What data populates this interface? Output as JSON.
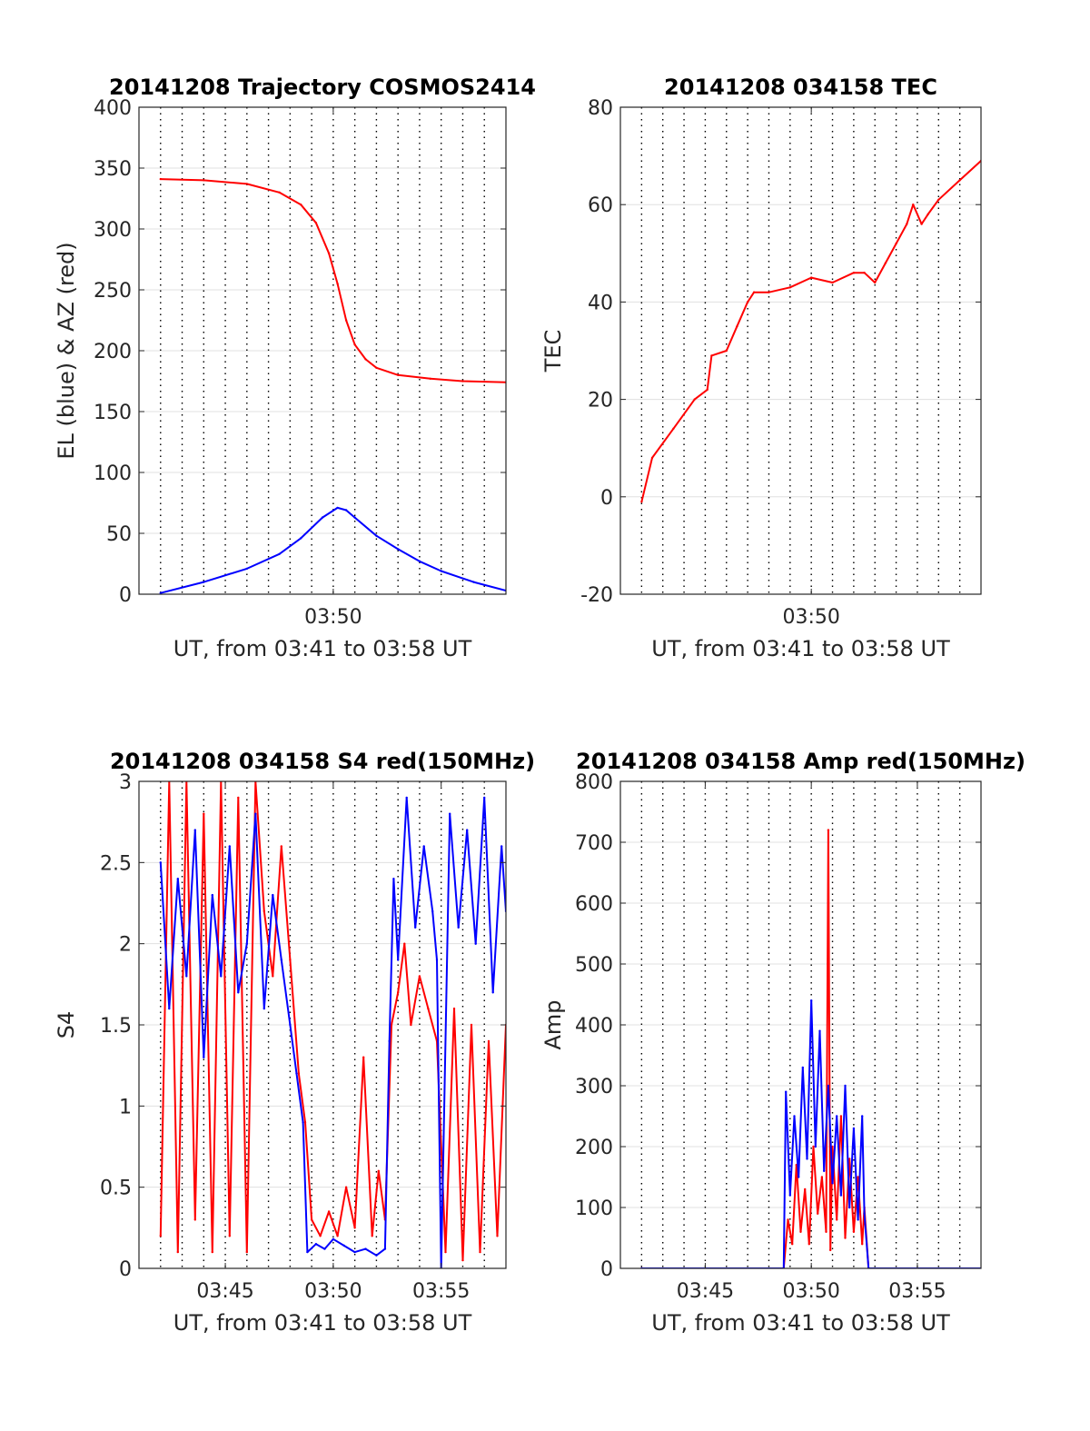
{
  "chart_data": [
    {
      "type": "line",
      "title": "20141208 Trajectory COSMOS2414",
      "xlabel": "UT, from 03:41 to 03:58 UT",
      "ylabel": "EL (blue) & AZ (red)",
      "x_unit": "minutes after 03:41 UT",
      "xlim": [
        0.0,
        17.0
      ],
      "ylim": [
        0,
        400
      ],
      "yticks": [
        0,
        50,
        100,
        150,
        200,
        250,
        300,
        350,
        400
      ],
      "xticks": [
        {
          "value": 9.0,
          "label": "03:50"
        }
      ],
      "grid": true,
      "series": [
        {
          "color": "#ff0000",
          "x": [
            1.0,
            3.0,
            5.0,
            6.5,
            7.5,
            8.2,
            8.8,
            9.2,
            9.6,
            10.0,
            10.5,
            11.0,
            12.0,
            13.5,
            15.0,
            17.0
          ],
          "values": [
            341,
            340,
            337,
            330,
            320,
            305,
            280,
            255,
            225,
            205,
            193,
            186,
            180,
            177,
            175,
            174
          ]
        },
        {
          "color": "#0000ff",
          "x": [
            1.0,
            3.0,
            5.0,
            6.5,
            7.5,
            8.5,
            9.2,
            9.6,
            10.0,
            11.0,
            12.0,
            13.0,
            14.0,
            15.5,
            17.0
          ],
          "values": [
            1,
            10,
            21,
            33,
            46,
            63,
            71,
            69,
            63,
            48,
            37,
            27,
            19,
            10,
            3
          ]
        }
      ]
    },
    {
      "type": "line",
      "title": "20141208 034158 TEC",
      "xlabel": "UT, from 03:41 to 03:58 UT",
      "ylabel": "TEC",
      "x_unit": "minutes after 03:41 UT",
      "xlim": [
        0.0,
        17.0
      ],
      "ylim": [
        -20,
        80
      ],
      "yticks": [
        -20,
        0,
        20,
        40,
        60,
        80
      ],
      "xticks": [
        {
          "value": 9.0,
          "label": "03:50"
        }
      ],
      "grid": true,
      "series": [
        {
          "color": "#ff0000",
          "x": [
            1.0,
            1.5,
            2.5,
            3.5,
            4.1,
            4.3,
            5.0,
            5.5,
            6.0,
            6.3,
            7.0,
            8.0,
            9.0,
            10.0,
            11.0,
            11.5,
            12.0,
            12.5,
            13.0,
            13.5,
            13.8,
            14.2,
            14.5,
            15.0,
            16.0,
            17.0
          ],
          "values": [
            -1,
            8,
            14,
            20,
            22,
            29,
            30,
            35,
            40,
            42,
            42,
            43,
            45,
            44,
            46,
            46,
            44,
            48,
            52,
            56,
            60,
            56,
            58,
            61,
            65,
            69
          ]
        }
      ]
    },
    {
      "type": "line",
      "title": "20141208 034158 S4 red(150MHz)",
      "xlabel": "UT, from 03:41 to 03:58 UT",
      "ylabel": "S4",
      "x_unit": "minutes after 03:41 UT",
      "xlim": [
        0.0,
        17.0
      ],
      "ylim": [
        0,
        3
      ],
      "yticks": [
        0,
        0.5,
        1,
        1.5,
        2,
        2.5,
        3
      ],
      "xticks": [
        {
          "value": 4.0,
          "label": "03:45"
        },
        {
          "value": 9.0,
          "label": "03:50"
        },
        {
          "value": 14.0,
          "label": "03:55"
        }
      ],
      "grid": true,
      "series": [
        {
          "color": "#ff0000",
          "x": [
            1.0,
            1.4,
            1.8,
            2.2,
            2.6,
            3.0,
            3.4,
            3.8,
            4.2,
            4.6,
            5.0,
            5.4,
            5.8,
            6.2,
            6.6,
            7.0,
            7.4,
            7.7,
            8.0,
            8.4,
            8.8,
            9.2,
            9.6,
            10.0,
            10.4,
            10.8,
            11.1,
            11.4,
            11.7,
            12.0,
            12.3,
            12.6,
            13.0,
            13.4,
            13.8,
            14.2,
            14.6,
            15.0,
            15.4,
            15.8,
            16.2,
            16.6,
            17.0
          ],
          "values": [
            0.2,
            3.0,
            0.1,
            3.0,
            0.3,
            2.8,
            0.1,
            3.0,
            0.2,
            2.9,
            0.1,
            3.0,
            2.2,
            1.8,
            2.6,
            1.9,
            1.2,
            0.9,
            0.3,
            0.2,
            0.35,
            0.2,
            0.5,
            0.25,
            1.3,
            0.2,
            0.6,
            0.3,
            1.5,
            1.7,
            2.0,
            1.5,
            1.8,
            1.6,
            1.4,
            0.1,
            1.6,
            0.05,
            1.5,
            0.1,
            1.4,
            0.2,
            1.5
          ]
        },
        {
          "color": "#0000ff",
          "x": [
            1.0,
            1.4,
            1.8,
            2.2,
            2.6,
            3.0,
            3.4,
            3.8,
            4.2,
            4.6,
            5.0,
            5.4,
            5.8,
            6.2,
            6.6,
            7.0,
            7.3,
            7.6,
            7.8,
            8.2,
            8.6,
            9.0,
            9.5,
            10.0,
            10.5,
            11.0,
            11.4,
            11.6,
            11.8,
            12.0,
            12.4,
            12.8,
            13.2,
            13.6,
            13.8,
            14.0,
            14.4,
            14.8,
            15.2,
            15.6,
            16.0,
            16.4,
            16.8,
            17.0
          ],
          "values": [
            2.5,
            1.6,
            2.4,
            1.8,
            2.7,
            1.3,
            2.3,
            1.8,
            2.6,
            1.7,
            2.0,
            2.8,
            1.6,
            2.3,
            1.9,
            1.5,
            1.2,
            0.9,
            0.1,
            0.15,
            0.12,
            0.18,
            0.14,
            0.1,
            0.12,
            0.08,
            0.12,
            1.4,
            2.4,
            1.9,
            2.9,
            2.1,
            2.6,
            2.2,
            1.9,
            0.0,
            2.8,
            2.1,
            2.7,
            2.0,
            2.9,
            1.7,
            2.6,
            2.2
          ]
        }
      ]
    },
    {
      "type": "line",
      "title": "20141208 034158 Amp red(150MHz)",
      "xlabel": "UT, from 03:41 to 03:58 UT",
      "ylabel": "Amp",
      "x_unit": "minutes after 03:41 UT",
      "xlim": [
        0.0,
        17.0
      ],
      "ylim": [
        0,
        800
      ],
      "yticks": [
        0,
        100,
        200,
        300,
        400,
        500,
        600,
        700,
        800
      ],
      "xticks": [
        {
          "value": 4.0,
          "label": "03:45"
        },
        {
          "value": 9.0,
          "label": "03:50"
        },
        {
          "value": 14.0,
          "label": "03:55"
        }
      ],
      "grid": true,
      "series": [
        {
          "color": "#ff0000",
          "x": [
            1.0,
            7.7,
            7.9,
            8.1,
            8.3,
            8.5,
            8.7,
            8.9,
            9.1,
            9.3,
            9.5,
            9.7,
            9.8,
            9.9,
            10.0,
            10.2,
            10.4,
            10.6,
            10.8,
            11.0,
            11.2,
            11.4,
            11.5,
            11.7,
            17.0
          ],
          "values": [
            0,
            0,
            80,
            40,
            170,
            60,
            130,
            40,
            200,
            90,
            150,
            60,
            720,
            30,
            200,
            80,
            250,
            50,
            180,
            60,
            150,
            40,
            100,
            0,
            0
          ]
        },
        {
          "color": "#0000ff",
          "x": [
            1.0,
            7.7,
            7.8,
            8.0,
            8.2,
            8.4,
            8.6,
            8.8,
            9.0,
            9.2,
            9.4,
            9.6,
            9.8,
            10.0,
            10.2,
            10.4,
            10.6,
            10.8,
            11.0,
            11.2,
            11.4,
            11.5,
            11.7,
            17.0
          ],
          "values": [
            0,
            0,
            290,
            120,
            250,
            150,
            330,
            180,
            440,
            200,
            390,
            160,
            300,
            140,
            250,
            120,
            300,
            100,
            230,
            80,
            250,
            90,
            0,
            0
          ]
        }
      ]
    }
  ]
}
